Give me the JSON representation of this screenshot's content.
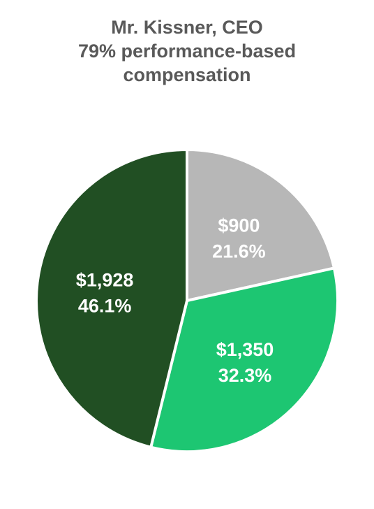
{
  "chart_data": {
    "type": "pie",
    "title": [
      "Mr. Kissner, CEO",
      "79% performance-based",
      "compensation"
    ],
    "slices": [
      {
        "value": 900,
        "value_label": "$900",
        "percent_label": "21.6%",
        "color": "#b7b7b7"
      },
      {
        "value": 1350,
        "value_label": "$1,350",
        "percent_label": "32.3%",
        "color": "#1dc672"
      },
      {
        "value": 1928,
        "value_label": "$1,928",
        "percent_label": "46.1%",
        "color": "#214f23"
      }
    ],
    "start_angle_deg": 0,
    "direction": "clockwise",
    "slice_separator_color": "#ffffff"
  }
}
